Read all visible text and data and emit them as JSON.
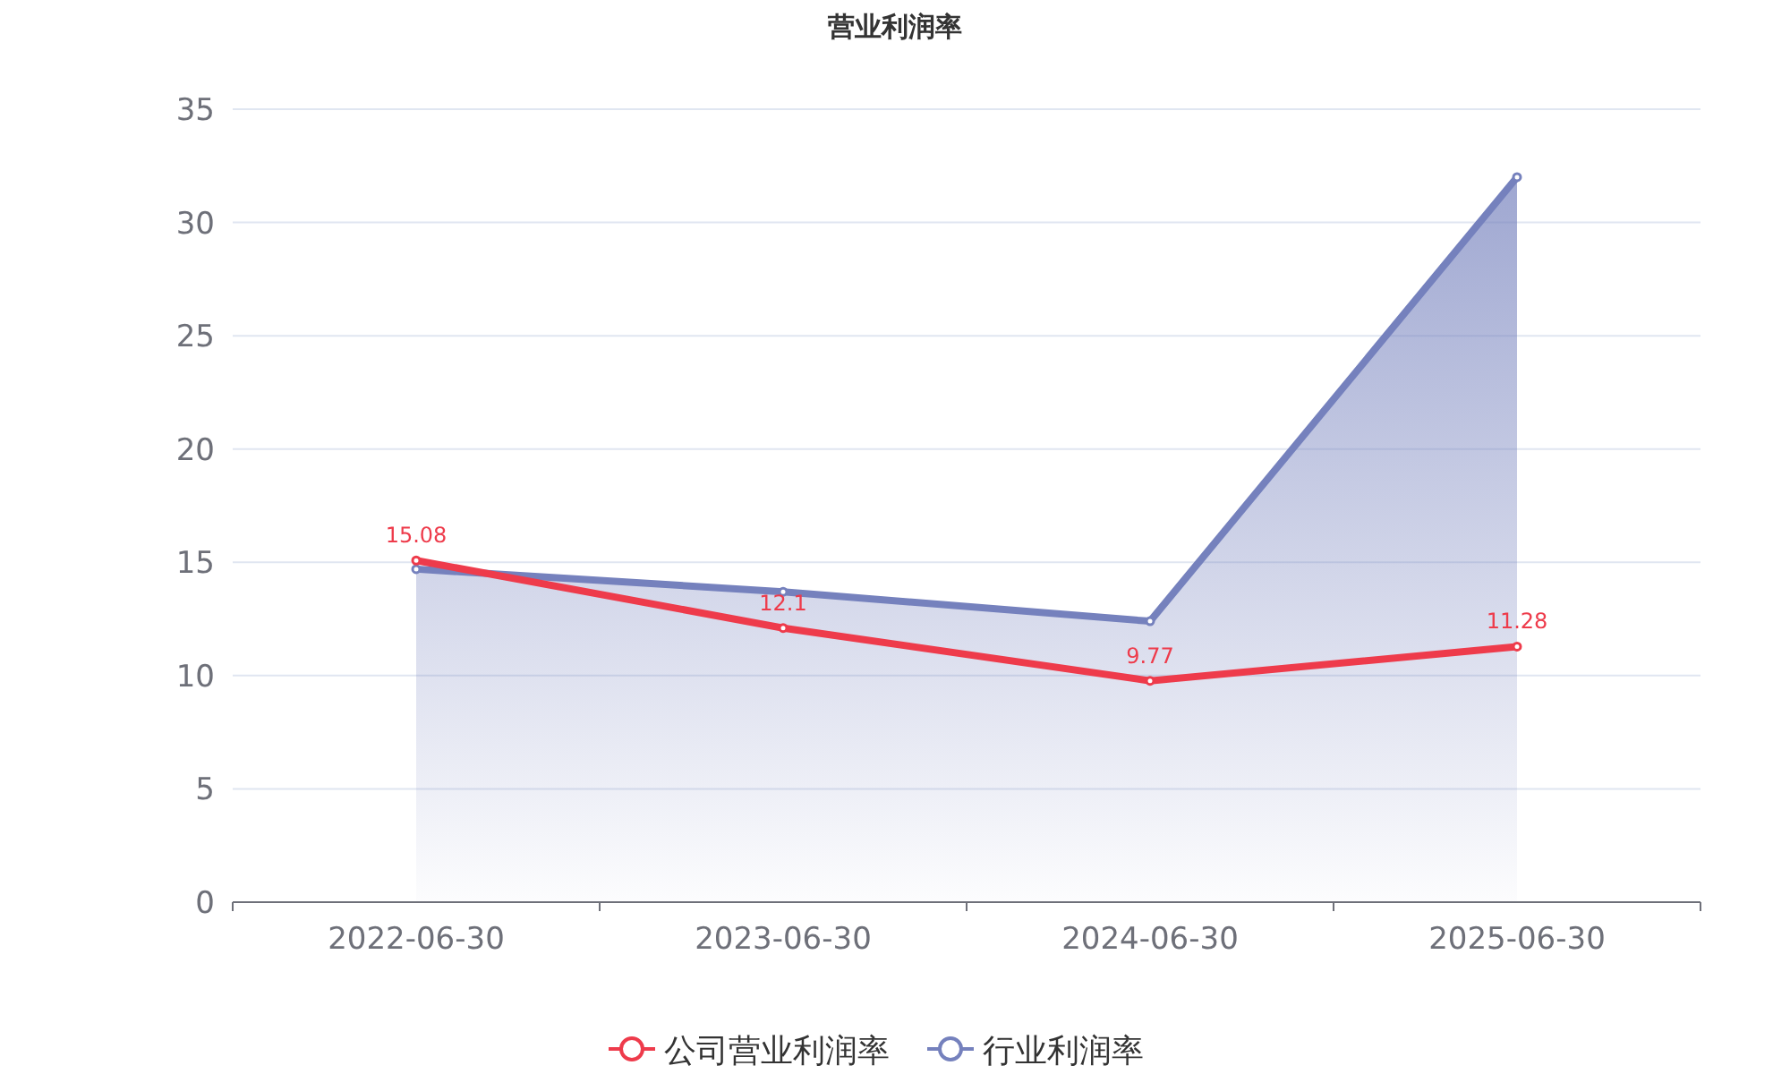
{
  "chart_data": {
    "type": "line",
    "title": "营业利润率",
    "categories": [
      "2022-06-30",
      "2023-06-30",
      "2024-06-30",
      "2025-06-30"
    ],
    "series": [
      {
        "name": "公司营业利润率",
        "color": "#ee3b4b",
        "values": [
          15.08,
          12.1,
          9.77,
          11.28
        ],
        "value_labels": [
          "15.08",
          "12.1",
          "9.77",
          "11.28"
        ]
      },
      {
        "name": "行业利润率",
        "type": "area",
        "color": "#7581bd",
        "values": [
          14.7,
          13.7,
          12.4,
          32.0
        ]
      }
    ],
    "ylim": [
      0,
      35
    ],
    "yticks": [
      0,
      5,
      10,
      15,
      20,
      25,
      30,
      35
    ],
    "grid": "y",
    "legend": "bottom",
    "marker": "circle"
  }
}
